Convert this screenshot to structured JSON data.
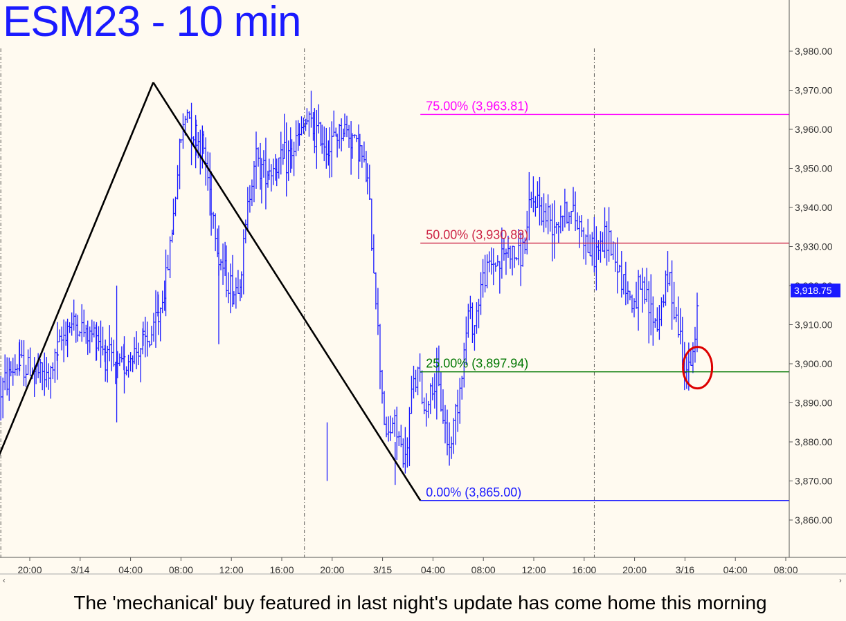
{
  "title": "ESM23 - 10 min",
  "caption": "The 'mechanical' buy featured in last night's update has come home this morning",
  "colors": {
    "background": "#fffaf0",
    "price_bars": "#1a1aff",
    "pattern_lines": "#000000",
    "level_75": "#ff00ff",
    "level_50": "#cc2244",
    "level_25": "#007700",
    "level_0": "#1a1aff",
    "marker_circle": "#dd0000"
  },
  "chart_data": {
    "type": "ohlc",
    "instrument": "ESM23",
    "interval": "10 min",
    "ylim": [
      3850,
      3990
    ],
    "y_ticks": [
      "3,860.00",
      "3,870.00",
      "3,880.00",
      "3,890.00",
      "3,900.00",
      "3,910.00",
      "3,920.00",
      "3,930.00",
      "3,940.00",
      "3,950.00",
      "3,960.00",
      "3,970.00",
      "3,980.00"
    ],
    "y_tick_values": [
      3860,
      3870,
      3880,
      3890,
      3900,
      3910,
      3920,
      3930,
      3940,
      3950,
      3960,
      3970,
      3980
    ],
    "x_ticks": [
      "20:00",
      "3/14",
      "04:00",
      "08:00",
      "12:00",
      "16:00",
      "20:00",
      "3/15",
      "04:00",
      "08:00",
      "12:00",
      "16:00",
      "20:00",
      "3/16",
      "04:00",
      "08:00"
    ],
    "x_tick_hours": [
      0,
      4,
      8,
      12,
      16,
      20,
      24,
      28,
      32,
      36,
      40,
      44,
      48,
      52,
      56,
      60
    ],
    "session_dividers_hours": [
      -2.3,
      21.8,
      44.8
    ],
    "last_price": 3918.75,
    "last_price_label": "3,918.75",
    "price_path": [
      [
        -2.3,
        3893
      ],
      [
        -1.5,
        3898
      ],
      [
        -0.8,
        3900
      ],
      [
        0.5,
        3898
      ],
      [
        1.5,
        3896
      ],
      [
        2.2,
        3903
      ],
      [
        3.0,
        3910
      ],
      [
        3.8,
        3910
      ],
      [
        4.6,
        3907
      ],
      [
        5.3,
        3908
      ],
      [
        6.0,
        3903
      ],
      [
        6.8,
        3898
      ],
      [
        7.5,
        3900
      ],
      [
        8.3,
        3903
      ],
      [
        9.0,
        3905
      ],
      [
        9.5,
        3906
      ],
      [
        10.2,
        3912
      ],
      [
        10.8,
        3921
      ],
      [
        11.4,
        3938
      ],
      [
        12.0,
        3958
      ],
      [
        12.5,
        3965
      ],
      [
        13.2,
        3958
      ],
      [
        13.8,
        3955
      ],
      [
        14.4,
        3942
      ],
      [
        15.0,
        3928
      ],
      [
        15.6,
        3922
      ],
      [
        16.2,
        3918
      ],
      [
        16.8,
        3924
      ],
      [
        17.3,
        3940
      ],
      [
        17.8,
        3953
      ],
      [
        18.4,
        3950
      ],
      [
        19.0,
        3950
      ],
      [
        19.6,
        3951
      ],
      [
        20.2,
        3952
      ],
      [
        20.8,
        3954
      ],
      [
        21.4,
        3958
      ],
      [
        22.0,
        3962
      ],
      [
        22.6,
        3959
      ],
      [
        23.2,
        3958
      ],
      [
        23.8,
        3955
      ],
      [
        24.4,
        3959
      ],
      [
        25.0,
        3960
      ],
      [
        25.6,
        3958
      ],
      [
        26.2,
        3955
      ],
      [
        26.8,
        3946
      ],
      [
        27.3,
        3925
      ],
      [
        27.8,
        3900
      ],
      [
        28.3,
        3880
      ],
      [
        28.8,
        3885
      ],
      [
        29.3,
        3881
      ],
      [
        29.8,
        3874
      ],
      [
        30.3,
        3892
      ],
      [
        30.8,
        3898
      ],
      [
        31.3,
        3888
      ],
      [
        31.8,
        3893
      ],
      [
        32.3,
        3895
      ],
      [
        32.8,
        3887
      ],
      [
        33.3,
        3878
      ],
      [
        33.8,
        3888
      ],
      [
        34.3,
        3898
      ],
      [
        34.8,
        3913
      ],
      [
        35.3,
        3910
      ],
      [
        35.8,
        3920
      ],
      [
        36.3,
        3924
      ],
      [
        36.8,
        3926
      ],
      [
        37.3,
        3926
      ],
      [
        37.8,
        3929
      ],
      [
        38.3,
        3928
      ],
      [
        38.8,
        3927
      ],
      [
        39.3,
        3931
      ],
      [
        39.8,
        3941
      ],
      [
        40.3,
        3942
      ],
      [
        40.8,
        3938
      ],
      [
        41.3,
        3937
      ],
      [
        41.8,
        3937
      ],
      [
        42.3,
        3939
      ],
      [
        42.8,
        3939
      ],
      [
        43.3,
        3937
      ],
      [
        43.8,
        3935
      ],
      [
        44.3,
        3930
      ],
      [
        44.8,
        3928
      ],
      [
        45.3,
        3930
      ],
      [
        45.8,
        3932
      ],
      [
        46.3,
        3930
      ],
      [
        46.8,
        3924
      ],
      [
        47.3,
        3920
      ],
      [
        47.8,
        3915
      ],
      [
        48.3,
        3918
      ],
      [
        48.8,
        3917
      ],
      [
        49.3,
        3913
      ],
      [
        49.8,
        3910
      ],
      [
        50.3,
        3918
      ],
      [
        50.8,
        3922
      ],
      [
        51.3,
        3912
      ],
      [
        51.8,
        3904
      ],
      [
        52.3,
        3897
      ],
      [
        52.8,
        3905
      ],
      [
        53.1,
        3918.75
      ]
    ],
    "spikes": [
      {
        "hour": 6.9,
        "low": 3885,
        "high": 3920
      },
      {
        "hour": 23.6,
        "low": 3870,
        "high": 3885
      },
      {
        "hour": 29.0,
        "low": 3869,
        "high": 3880
      },
      {
        "hour": 15.0,
        "low": 3905,
        "high": 3925
      }
    ],
    "pattern_lines": [
      {
        "from": [
          -2.5,
          3876
        ],
        "to": [
          9.8,
          3972
        ]
      },
      {
        "from": [
          9.8,
          3972
        ],
        "to": [
          31.0,
          3865
        ]
      }
    ],
    "retracement_levels": [
      {
        "label": "75.00% (3,963.81)",
        "value": 3963.81,
        "color": "#ff00ff"
      },
      {
        "label": "50.00% (3,930.88)",
        "value": 3930.88,
        "color": "#cc2244"
      },
      {
        "label": "25.00% (3,897.94)",
        "value": 3897.94,
        "color": "#007700"
      },
      {
        "label": "0.00% (3,865.00)",
        "value": 3865.0,
        "color": "#1a1aff"
      }
    ],
    "retracement_start_hour": 31.0,
    "marker_circle": {
      "hour": 53.0,
      "value": 3899
    }
  },
  "scroll_left": "‹",
  "scroll_right": "›"
}
